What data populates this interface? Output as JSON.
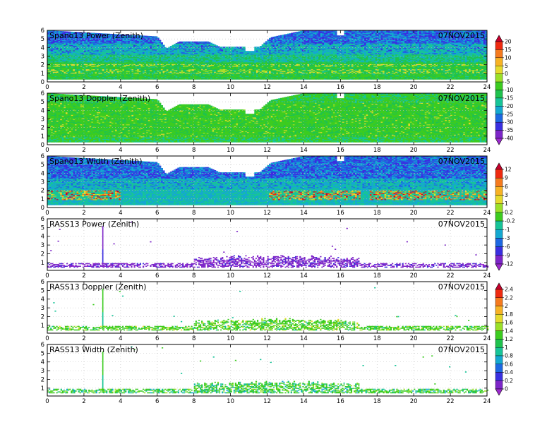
{
  "chart_data": [
    {
      "type": "heatmap",
      "title": "Spano13 Power (Zenith)",
      "date": "07NOV2015",
      "x_ticks": [
        0,
        2,
        4,
        6,
        8,
        10,
        12,
        14,
        16,
        18,
        20,
        22,
        24
      ],
      "y_ticks": [
        0,
        1,
        2,
        3,
        4,
        5,
        6
      ],
      "xlim": [
        0,
        24
      ],
      "ylim": [
        0,
        6
      ],
      "colorbar": "cb_power_doppler",
      "coverage_top": [
        [
          0,
          6
        ],
        [
          6,
          5.3
        ],
        [
          6.5,
          3.9
        ],
        [
          7.2,
          4.7
        ],
        [
          8.8,
          4.7
        ],
        [
          9.4,
          4.1
        ],
        [
          10.8,
          4.1
        ],
        [
          10.8,
          3.6
        ],
        [
          11.3,
          3.6
        ],
        [
          11.3,
          4.1
        ],
        [
          11.6,
          4.1
        ],
        [
          12.2,
          5.2
        ],
        [
          14,
          6
        ],
        [
          15.8,
          6
        ],
        [
          15.8,
          5.4
        ],
        [
          16.2,
          5.4
        ],
        [
          16.2,
          6
        ],
        [
          24,
          6
        ]
      ],
      "bottom_gap": 0.3,
      "signal": "power"
    },
    {
      "type": "heatmap",
      "title": "Spano13 Doppler (Zenith)",
      "date": "07NOV2015",
      "x_ticks": [
        0,
        2,
        4,
        6,
        8,
        10,
        12,
        14,
        16,
        18,
        20,
        22,
        24
      ],
      "y_ticks": [
        0,
        1,
        2,
        3,
        4,
        5,
        6
      ],
      "xlim": [
        0,
        24
      ],
      "ylim": [
        0,
        6
      ],
      "colorbar": "cb_power_doppler",
      "coverage_top": [
        [
          0,
          6
        ],
        [
          6,
          5.3
        ],
        [
          6.5,
          3.9
        ],
        [
          7.2,
          4.7
        ],
        [
          8.8,
          4.7
        ],
        [
          9.4,
          4.1
        ],
        [
          10.8,
          4.1
        ],
        [
          10.8,
          3.6
        ],
        [
          11.3,
          3.6
        ],
        [
          11.3,
          4.1
        ],
        [
          11.6,
          4.1
        ],
        [
          12.2,
          5.2
        ],
        [
          14,
          6
        ],
        [
          15.8,
          6
        ],
        [
          15.8,
          5.4
        ],
        [
          16.2,
          5.4
        ],
        [
          16.2,
          6
        ],
        [
          24,
          6
        ]
      ],
      "bottom_gap": 0.3,
      "signal": "doppler"
    },
    {
      "type": "heatmap",
      "title": "Spano13 Width (Zenith)",
      "date": "07NOV2015",
      "x_ticks": [
        0,
        2,
        4,
        6,
        8,
        10,
        12,
        14,
        16,
        18,
        20,
        22,
        24
      ],
      "y_ticks": [
        0,
        1,
        2,
        3,
        4,
        5,
        6
      ],
      "xlim": [
        0,
        24
      ],
      "ylim": [
        0,
        6
      ],
      "colorbar": "cb_width",
      "coverage_top": [
        [
          0,
          6
        ],
        [
          6,
          5.3
        ],
        [
          6.5,
          3.9
        ],
        [
          7.2,
          4.7
        ],
        [
          8.8,
          4.7
        ],
        [
          9.4,
          4.1
        ],
        [
          10.8,
          4.1
        ],
        [
          10.8,
          3.6
        ],
        [
          11.3,
          3.6
        ],
        [
          11.3,
          4.1
        ],
        [
          11.6,
          4.1
        ],
        [
          12.2,
          5.2
        ],
        [
          14,
          6
        ],
        [
          15.8,
          6
        ],
        [
          15.8,
          5.4
        ],
        [
          16.2,
          5.4
        ],
        [
          16.2,
          6
        ],
        [
          24,
          6
        ]
      ],
      "bottom_gap": 0.3,
      "signal": "width"
    },
    {
      "type": "heatmap",
      "title": "RASS13 Power (Zenith)",
      "date": "07NOV2015",
      "x_ticks": [
        0,
        2,
        4,
        6,
        8,
        10,
        12,
        14,
        16,
        18,
        20,
        22,
        24
      ],
      "y_ticks": [
        1,
        2,
        3,
        4,
        5,
        6
      ],
      "xlim": [
        0,
        24
      ],
      "ylim": [
        0.1,
        6
      ],
      "colorbar": "cb_width",
      "signal": "rass_power",
      "spike_x": 3.0
    },
    {
      "type": "heatmap",
      "title": "RASS13 Doppler (Zenith)",
      "date": "07NOV2015",
      "x_ticks": [
        0,
        2,
        4,
        6,
        8,
        10,
        12,
        14,
        16,
        18,
        20,
        22,
        24
      ],
      "y_ticks": [
        1,
        2,
        3,
        4,
        5,
        6
      ],
      "xlim": [
        0,
        24
      ],
      "ylim": [
        0.1,
        6
      ],
      "colorbar": "cb_rass",
      "signal": "rass_doppler",
      "spike_x": 3.0
    },
    {
      "type": "heatmap",
      "title": "RASS13 Width (Zenith)",
      "date": "07NOV2015",
      "x_ticks": [
        0,
        2,
        4,
        6,
        8,
        10,
        12,
        14,
        16,
        18,
        20,
        22,
        24
      ],
      "y_ticks": [
        1,
        2,
        3,
        4,
        5,
        6
      ],
      "xlim": [
        0,
        24
      ],
      "ylim": [
        0.1,
        6
      ],
      "colorbar": "cb_rass",
      "signal": "rass_width",
      "spike_x": 3.0
    }
  ],
  "colorbars": {
    "cb_power_doppler": {
      "labels": [
        "20",
        "15",
        "10",
        "5",
        "0",
        "-5",
        "-10",
        "-15",
        "-20",
        "-25",
        "-30",
        "-35",
        "-40"
      ],
      "colors": [
        "#c8002d",
        "#ee2a10",
        "#f57a1e",
        "#f7b224",
        "#e5da2c",
        "#9be028",
        "#3ccc20",
        "#1fc24e",
        "#17c498",
        "#14a8d0",
        "#1d68e2",
        "#3a2fe0",
        "#7d26c8",
        "#9e2ad0"
      ]
    },
    "cb_width": {
      "labels": [
        "12",
        "9",
        "6",
        "3",
        "1",
        "0.2",
        "-0.2",
        "-1",
        "-3",
        "-6",
        "-9",
        "-12"
      ],
      "colors": [
        "#c8002d",
        "#ee2a10",
        "#f57a1e",
        "#f7b224",
        "#e5da2c",
        "#9be028",
        "#3ccc20",
        "#17c498",
        "#14a8d0",
        "#1d68e2",
        "#3a2fe0",
        "#7d26c8",
        "#9e2ad0"
      ]
    },
    "cb_rass": {
      "labels": [
        "2.4",
        "2.2",
        "2",
        "1.8",
        "1.6",
        "1.4",
        "1.2",
        "1",
        "0.8",
        "0.6",
        "0.4",
        "0.2",
        "0"
      ],
      "colors": [
        "#c8002d",
        "#ee2a10",
        "#f57a1e",
        "#f7b224",
        "#e5da2c",
        "#9be028",
        "#3ccc20",
        "#1fc24e",
        "#17c498",
        "#14a8d0",
        "#1d68e2",
        "#3a2fe0",
        "#7d26c8",
        "#9e2ad0"
      ]
    }
  }
}
